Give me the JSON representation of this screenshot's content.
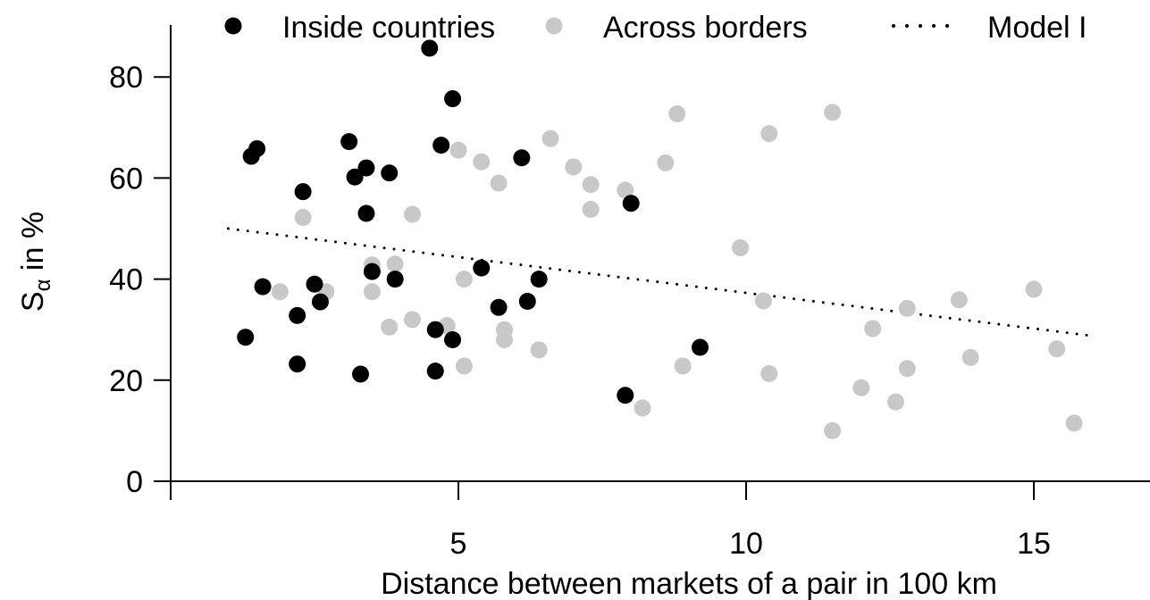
{
  "chart_data": {
    "type": "scatter",
    "xlabel": "Distance between markets of a pair in 100 km",
    "ylabel_main": "S",
    "ylabel_sub": "α",
    "ylabel_rest": " in %",
    "xlim": [
      0,
      17
    ],
    "ylim": [
      0,
      90
    ],
    "xticks": [
      5,
      10,
      15
    ],
    "yticks": [
      0,
      20,
      40,
      60,
      80
    ],
    "grid": false,
    "legend_position": "top",
    "series": [
      {
        "name": "Inside countries",
        "color": "#000000",
        "points": [
          {
            "x": 1.3,
            "y": 28.5
          },
          {
            "x": 1.4,
            "y": 64.3
          },
          {
            "x": 1.5,
            "y": 65.8
          },
          {
            "x": 1.6,
            "y": 38.5
          },
          {
            "x": 2.2,
            "y": 23.2
          },
          {
            "x": 2.2,
            "y": 32.8
          },
          {
            "x": 2.3,
            "y": 57.3
          },
          {
            "x": 2.5,
            "y": 39.0
          },
          {
            "x": 2.6,
            "y": 35.5
          },
          {
            "x": 3.1,
            "y": 67.2
          },
          {
            "x": 3.2,
            "y": 60.2
          },
          {
            "x": 3.3,
            "y": 21.2
          },
          {
            "x": 3.4,
            "y": 62.0
          },
          {
            "x": 3.4,
            "y": 53.0
          },
          {
            "x": 3.5,
            "y": 41.5
          },
          {
            "x": 3.8,
            "y": 61.0
          },
          {
            "x": 3.9,
            "y": 40.0
          },
          {
            "x": 4.5,
            "y": 85.7
          },
          {
            "x": 4.6,
            "y": 30.0
          },
          {
            "x": 4.6,
            "y": 21.8
          },
          {
            "x": 4.7,
            "y": 66.5
          },
          {
            "x": 4.9,
            "y": 75.7
          },
          {
            "x": 4.9,
            "y": 28.0
          },
          {
            "x": 5.4,
            "y": 42.2
          },
          {
            "x": 5.7,
            "y": 34.4
          },
          {
            "x": 6.1,
            "y": 64.0
          },
          {
            "x": 6.2,
            "y": 35.6
          },
          {
            "x": 6.4,
            "y": 40.0
          },
          {
            "x": 7.9,
            "y": 17.0
          },
          {
            "x": 8.0,
            "y": 55.0
          },
          {
            "x": 9.2,
            "y": 26.5
          }
        ]
      },
      {
        "name": "Across borders",
        "color": "#c8c8c8",
        "points": [
          {
            "x": 1.9,
            "y": 37.5
          },
          {
            "x": 2.3,
            "y": 52.2
          },
          {
            "x": 2.7,
            "y": 37.5
          },
          {
            "x": 3.5,
            "y": 42.8
          },
          {
            "x": 3.5,
            "y": 37.5
          },
          {
            "x": 3.8,
            "y": 30.5
          },
          {
            "x": 3.9,
            "y": 43.0
          },
          {
            "x": 4.2,
            "y": 52.8
          },
          {
            "x": 4.2,
            "y": 32.0
          },
          {
            "x": 4.8,
            "y": 30.8
          },
          {
            "x": 5.0,
            "y": 65.5
          },
          {
            "x": 5.1,
            "y": 40.0
          },
          {
            "x": 5.1,
            "y": 22.8
          },
          {
            "x": 5.4,
            "y": 63.2
          },
          {
            "x": 5.7,
            "y": 59.0
          },
          {
            "x": 5.8,
            "y": 30.0
          },
          {
            "x": 5.8,
            "y": 28.0
          },
          {
            "x": 6.4,
            "y": 26.0
          },
          {
            "x": 6.6,
            "y": 67.8
          },
          {
            "x": 7.0,
            "y": 62.2
          },
          {
            "x": 7.3,
            "y": 58.7
          },
          {
            "x": 7.3,
            "y": 53.8
          },
          {
            "x": 7.9,
            "y": 57.6
          },
          {
            "x": 8.2,
            "y": 14.5
          },
          {
            "x": 8.6,
            "y": 63.0
          },
          {
            "x": 8.8,
            "y": 72.7
          },
          {
            "x": 8.9,
            "y": 22.8
          },
          {
            "x": 9.9,
            "y": 46.2
          },
          {
            "x": 10.3,
            "y": 35.7
          },
          {
            "x": 10.4,
            "y": 68.8
          },
          {
            "x": 10.4,
            "y": 21.3
          },
          {
            "x": 11.5,
            "y": 73.0
          },
          {
            "x": 11.5,
            "y": 10.0
          },
          {
            "x": 12.0,
            "y": 18.5
          },
          {
            "x": 12.2,
            "y": 30.2
          },
          {
            "x": 12.6,
            "y": 15.7
          },
          {
            "x": 12.8,
            "y": 34.2
          },
          {
            "x": 12.8,
            "y": 22.3
          },
          {
            "x": 13.7,
            "y": 35.9
          },
          {
            "x": 13.9,
            "y": 24.5
          },
          {
            "x": 15.0,
            "y": 38.0
          },
          {
            "x": 15.4,
            "y": 26.2
          },
          {
            "x": 15.7,
            "y": 11.5
          }
        ]
      }
    ],
    "trend_line": {
      "name": "Model I",
      "style": "dotted",
      "color": "#000000",
      "x": [
        1.0,
        16.0
      ],
      "y": [
        50.0,
        28.8
      ]
    }
  }
}
